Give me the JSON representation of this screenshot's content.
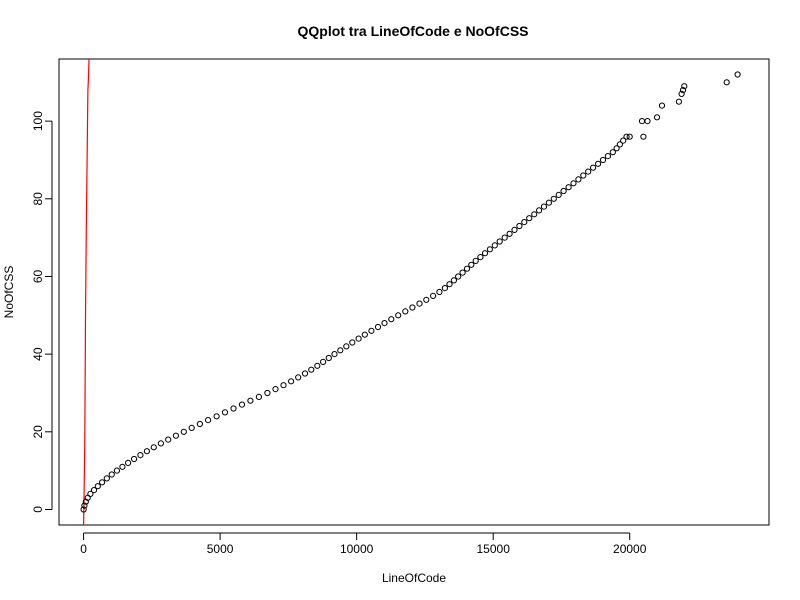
{
  "chart_data": {
    "type": "scatter",
    "title": "QQplot tra LineOfCode e NoOfCSS",
    "xlabel": "LineOfCode",
    "ylabel": "NoOfCSS",
    "xlim": [
      -900,
      25100
    ],
    "ylim": [
      -4,
      116
    ],
    "x_ticks": [
      0,
      5000,
      10000,
      15000,
      20000
    ],
    "x_tick_labels": [
      "0",
      "5000",
      "10000",
      "15000",
      "20000"
    ],
    "y_ticks": [
      0,
      20,
      40,
      60,
      80,
      100
    ],
    "y_tick_labels": [
      "0",
      "20",
      "40",
      "60",
      "80",
      "100"
    ],
    "grid": false,
    "legend": "none",
    "colors": {
      "points": "#000000",
      "reference_line": "#ff0000"
    },
    "reference_line": {
      "name": "",
      "x": [
        0,
        40,
        60,
        70,
        100,
        130,
        160,
        185,
        200
      ],
      "y": [
        -4,
        15,
        35,
        50,
        72,
        90,
        108,
        112,
        116
      ]
    },
    "series": [
      {
        "name": "",
        "x": [
          0,
          30,
          80,
          150,
          250,
          380,
          520,
          680,
          850,
          1030,
          1220,
          1420,
          1630,
          1850,
          2080,
          2320,
          2570,
          2830,
          3100,
          3380,
          3670,
          3960,
          4260,
          4560,
          4870,
          5180,
          5490,
          5800,
          6110,
          6420,
          6730,
          7030,
          7320,
          7600,
          7860,
          8110,
          8340,
          8560,
          8770,
          8980,
          9190,
          9400,
          9620,
          9840,
          10070,
          10300,
          10540,
          10780,
          11020,
          11270,
          11520,
          11780,
          12040,
          12300,
          12550,
          12800,
          13030,
          13230,
          13400,
          13560,
          13720,
          13880,
          14040,
          14200,
          14360,
          14530,
          14700,
          14880,
          15060,
          15240,
          15420,
          15600,
          15780,
          15960,
          16140,
          16320,
          16500,
          16680,
          16860,
          17040,
          17220,
          17400,
          17580,
          17760,
          17940,
          18120,
          18300,
          18480,
          18660,
          18840,
          19020,
          19200,
          19380,
          19520,
          19640,
          19760,
          19880,
          20000,
          20450,
          20500,
          20650,
          21000,
          21180,
          21800,
          21900,
          21950,
          22000,
          23550,
          23950
        ],
        "y": [
          0,
          1,
          2,
          3,
          4,
          5,
          6,
          7,
          8,
          9,
          10,
          11,
          12,
          13,
          14,
          15,
          16,
          17,
          18,
          19,
          20,
          21,
          22,
          23,
          24,
          25,
          26,
          27,
          28,
          29,
          30,
          31,
          32,
          33,
          34,
          35,
          36,
          37,
          38,
          39,
          40,
          41,
          42,
          43,
          44,
          45,
          46,
          47,
          48,
          49,
          50,
          51,
          52,
          53,
          54,
          55,
          56,
          57,
          58,
          59,
          60,
          61,
          62,
          63,
          64,
          65,
          66,
          67,
          68,
          69,
          70,
          71,
          72,
          73,
          74,
          75,
          76,
          77,
          78,
          79,
          80,
          81,
          82,
          83,
          84,
          85,
          86,
          87,
          88,
          89,
          90,
          91,
          92,
          93,
          94,
          95,
          96,
          96,
          100,
          96,
          100,
          101,
          104,
          105,
          107,
          108,
          109,
          110,
          112
        ]
      }
    ]
  }
}
